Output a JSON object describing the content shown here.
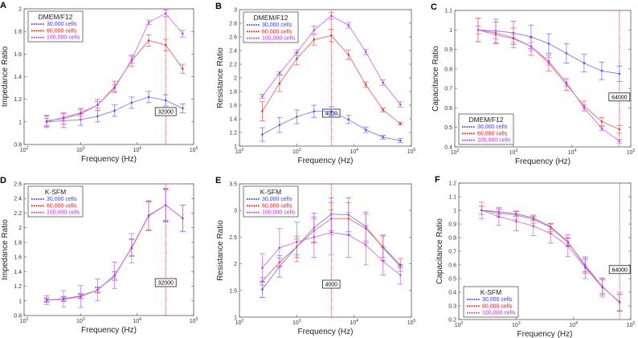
{
  "colors": {
    "30,000 cells": "#3a3aff",
    "60,000 cells": "#e01c1c",
    "100,000 cells": "#b02ee6"
  },
  "chart_data": [
    {
      "panel": "A",
      "type": "line",
      "xlabel": "Frequency (Hz)",
      "ylabel": "Impedance Ratio",
      "xscale": "log",
      "xlim": [
        100,
        100000
      ],
      "ylim": [
        0.8,
        2
      ],
      "yticks": [
        "0.8",
        "1",
        "1.2",
        "1.4",
        "1.6",
        "1.8",
        "2"
      ],
      "legend_title": "DMEM/F12",
      "legend_placement": "top-left",
      "marker": {
        "x": 32000,
        "label": "32000"
      },
      "x": [
        250,
        500,
        1000,
        2000,
        4000,
        8000,
        16000,
        32000,
        64000
      ],
      "series": [
        {
          "name": "30,000 cells",
          "values": [
            1.0,
            1.01,
            1.02,
            1.05,
            1.1,
            1.17,
            1.22,
            1.19,
            1.12
          ],
          "err": [
            0.05,
            0.06,
            0.05,
            0.05,
            0.05,
            0.05,
            0.05,
            0.05,
            0.04
          ]
        },
        {
          "name": "60,000 cells",
          "values": [
            1.01,
            1.03,
            1.07,
            1.15,
            1.31,
            1.54,
            1.72,
            1.68,
            1.47
          ],
          "err": [
            0.05,
            0.05,
            0.05,
            0.05,
            0.05,
            0.05,
            0.05,
            0.05,
            0.04
          ]
        },
        {
          "name": "100,000 cells",
          "values": [
            1.0,
            1.04,
            1.08,
            1.15,
            1.3,
            1.55,
            1.88,
            1.96,
            1.78
          ],
          "err": [
            0.03,
            0.03,
            0.03,
            0.03,
            0.03,
            0.03,
            0.02,
            0.03,
            0.03
          ]
        }
      ]
    },
    {
      "panel": "B",
      "type": "line",
      "xlabel": "Frequency (Hz)",
      "ylabel": "Resistance Ratio",
      "xscale": "log",
      "xlim": [
        100,
        100000
      ],
      "ylim": [
        1,
        3
      ],
      "yticks": [
        "1",
        "1.2",
        "1.4",
        "1.6",
        "1.8",
        "2",
        "2.2",
        "2.4",
        "2.6",
        "2.8",
        "3"
      ],
      "legend_title": "DMEM/F12",
      "legend_placement": "top-left",
      "marker": {
        "x": 4000,
        "label": "4000"
      },
      "x": [
        250,
        500,
        1000,
        2000,
        4000,
        8000,
        16000,
        32000,
        64000
      ],
      "series": [
        {
          "name": "30,000 cells",
          "values": [
            1.17,
            1.31,
            1.43,
            1.51,
            1.51,
            1.39,
            1.24,
            1.13,
            1.08
          ],
          "err": [
            0.1,
            0.11,
            0.1,
            0.09,
            0.07,
            0.06,
            0.04,
            0.03,
            0.03
          ]
        },
        {
          "name": "60,000 cells",
          "values": [
            1.51,
            1.92,
            2.28,
            2.56,
            2.62,
            2.34,
            1.9,
            1.53,
            1.33
          ],
          "err": [
            0.14,
            0.12,
            0.09,
            0.08,
            0.09,
            0.07,
            0.04,
            0.03,
            0.02
          ]
        },
        {
          "name": "100,000 cells",
          "values": [
            1.73,
            2.07,
            2.37,
            2.7,
            2.91,
            2.77,
            2.38,
            1.93,
            1.61
          ],
          "err": [
            0.03,
            0.02,
            0.04,
            0.06,
            0.05,
            0.04,
            0.04,
            0.04,
            0.04
          ]
        }
      ]
    },
    {
      "panel": "C",
      "type": "line",
      "xlabel": "Frequency (Hz)",
      "ylabel": "Capacitance Ratio",
      "xscale": "log",
      "xlim": [
        100,
        100000
      ],
      "ylim": [
        0.4,
        1.1
      ],
      "yticks": [
        "0.4",
        "0.5",
        "0.6",
        "0.7",
        "0.8",
        "0.9",
        "1",
        "1.1"
      ],
      "legend_title": "DMEM/F12",
      "legend_placement": "bottom-left",
      "marker": {
        "x": 64000,
        "label": "64000"
      },
      "x": [
        250,
        500,
        1000,
        2000,
        4000,
        8000,
        16000,
        32000,
        64000
      ],
      "series": [
        {
          "name": "30,000 cells",
          "values": [
            1.0,
            0.995,
            0.985,
            0.965,
            0.93,
            0.88,
            0.83,
            0.79,
            0.775
          ],
          "err": [
            0.06,
            0.06,
            0.06,
            0.06,
            0.05,
            0.05,
            0.045,
            0.045,
            0.04
          ]
        },
        {
          "name": "60,000 cells",
          "values": [
            1.0,
            0.985,
            0.96,
            0.915,
            0.83,
            0.72,
            0.61,
            0.53,
            0.49
          ],
          "err": [
            0.06,
            0.055,
            0.05,
            0.045,
            0.04,
            0.03,
            0.025,
            0.02,
            0.02
          ]
        },
        {
          "name": "100,000 cells",
          "values": [
            1.0,
            0.975,
            0.955,
            0.915,
            0.84,
            0.73,
            0.6,
            0.495,
            0.43
          ],
          "err": [
            0.02,
            0.02,
            0.02,
            0.02,
            0.02,
            0.02,
            0.015,
            0.01,
            0.01
          ]
        }
      ]
    },
    {
      "panel": "D",
      "type": "line",
      "xlabel": "Frequency (Hz)",
      "ylabel": "Impedance Ratio",
      "xscale": "log",
      "xlim": [
        100,
        100000
      ],
      "ylim": [
        0.8,
        2.6
      ],
      "yticks": [
        "0.8",
        "1",
        "1.2",
        "1.4",
        "1.6",
        "1.8",
        "2",
        "2.2",
        "2.4",
        "2.6"
      ],
      "legend_title": "K-SFM",
      "legend_placement": "top-left",
      "marker": {
        "x": 32000,
        "label": "32000"
      },
      "x": [
        250,
        500,
        1000,
        2000,
        4000,
        8000,
        16000,
        32000,
        64000
      ],
      "series": [
        {
          "name": "30,000 cells",
          "values": [
            1.01,
            1.02,
            1.06,
            1.15,
            1.34,
            1.73,
            2.16,
            2.31,
            2.13
          ],
          "err": [
            0.03,
            0.03,
            0.03,
            0.03,
            0.06,
            0.11,
            0.19,
            0.23,
            0.18
          ]
        },
        {
          "name": "60,000 cells",
          "values": [
            1.01,
            1.03,
            1.07,
            1.15,
            1.35,
            1.73,
            2.17,
            2.31,
            2.13
          ],
          "err": [
            0.02,
            0.03,
            0.03,
            0.04,
            0.05,
            0.12,
            0.2,
            0.21,
            0.18
          ]
        },
        {
          "name": "100,000 cells",
          "values": [
            1.01,
            1.03,
            1.06,
            1.15,
            1.35,
            1.72,
            2.16,
            2.31,
            2.13
          ],
          "err": [
            0.06,
            0.11,
            0.15,
            0.15,
            0.18,
            0.2,
            0.2,
            0.22,
            0.18
          ]
        }
      ]
    },
    {
      "panel": "E",
      "type": "line",
      "xlabel": "Frequency (Hz)",
      "ylabel": "Resistance Ratio",
      "xscale": "log",
      "xlim": [
        100,
        100000
      ],
      "ylim": [
        1,
        3.5
      ],
      "yticks": [
        "1",
        "1.5",
        "2",
        "2.5",
        "3",
        "3.5"
      ],
      "legend_title": "K-SFM",
      "legend_placement": "top-left",
      "marker": {
        "x": 4000,
        "label": "4000"
      },
      "x": [
        250,
        500,
        1000,
        2000,
        4000,
        8000,
        16000,
        32000,
        64000
      ],
      "series": [
        {
          "name": "30,000 cells",
          "values": [
            1.52,
            1.95,
            2.32,
            2.68,
            2.93,
            2.92,
            2.7,
            2.3,
            1.95
          ],
          "err": [
            0.15,
            0.2,
            0.15,
            0.27,
            0.31,
            0.32,
            0.27,
            0.24,
            0.03
          ]
        },
        {
          "name": "60,000 cells",
          "values": [
            1.67,
            2.03,
            2.32,
            2.62,
            2.85,
            2.85,
            2.66,
            2.32,
            1.98
          ],
          "err": [
            0.07,
            0.08,
            0.2,
            0.23,
            0.3,
            0.3,
            0.27,
            0.2,
            0.12
          ]
        },
        {
          "name": "100,000 cells",
          "values": [
            1.92,
            2.3,
            2.41,
            2.5,
            2.59,
            2.54,
            2.35,
            2.05,
            1.79
          ],
          "err": [
            0.27,
            0.36,
            0.37,
            0.38,
            0.42,
            0.42,
            0.37,
            0.26,
            0.17
          ]
        }
      ]
    },
    {
      "panel": "F",
      "type": "line",
      "xlabel": "Frequency (Hz)",
      "ylabel": "Capacitance Ratio",
      "xscale": "log",
      "xlim": [
        100,
        100000
      ],
      "ylim": [
        0.2,
        1.2
      ],
      "yticks": [
        "0.2",
        "0.3",
        "0.4",
        "0.5",
        "0.6",
        "0.7",
        "0.8",
        "0.9",
        "1",
        "1.1",
        "1.2"
      ],
      "legend_title": "K-SFM",
      "legend_placement": "bottom-left",
      "marker": {
        "x": 64000,
        "label": "64000"
      },
      "x": [
        250,
        500,
        1000,
        2000,
        4000,
        8000,
        16000,
        32000,
        64000
      ],
      "series": [
        {
          "name": "30,000 cells",
          "values": [
            1.0,
            0.99,
            0.975,
            0.945,
            0.88,
            0.77,
            0.59,
            0.44,
            0.325
          ],
          "err": [
            0.03,
            0.02,
            0.02,
            0.02,
            0.02,
            0.03,
            0.05,
            0.05,
            0.06
          ]
        },
        {
          "name": "60,000 cells",
          "values": [
            1.0,
            0.98,
            0.965,
            0.935,
            0.875,
            0.765,
            0.6,
            0.44,
            0.325
          ],
          "err": [
            0.03,
            0.03,
            0.03,
            0.03,
            0.03,
            0.03,
            0.05,
            0.06,
            0.06
          ]
        },
        {
          "name": "100,000 cells",
          "values": [
            1.0,
            0.955,
            0.92,
            0.885,
            0.83,
            0.74,
            0.58,
            0.435,
            0.33
          ],
          "err": [
            0.06,
            0.065,
            0.07,
            0.07,
            0.07,
            0.08,
            0.08,
            0.07,
            0.07
          ]
        }
      ]
    }
  ],
  "x_tick_exponents": [
    "2",
    "3",
    "4",
    "5"
  ],
  "x_tick_base": "10"
}
